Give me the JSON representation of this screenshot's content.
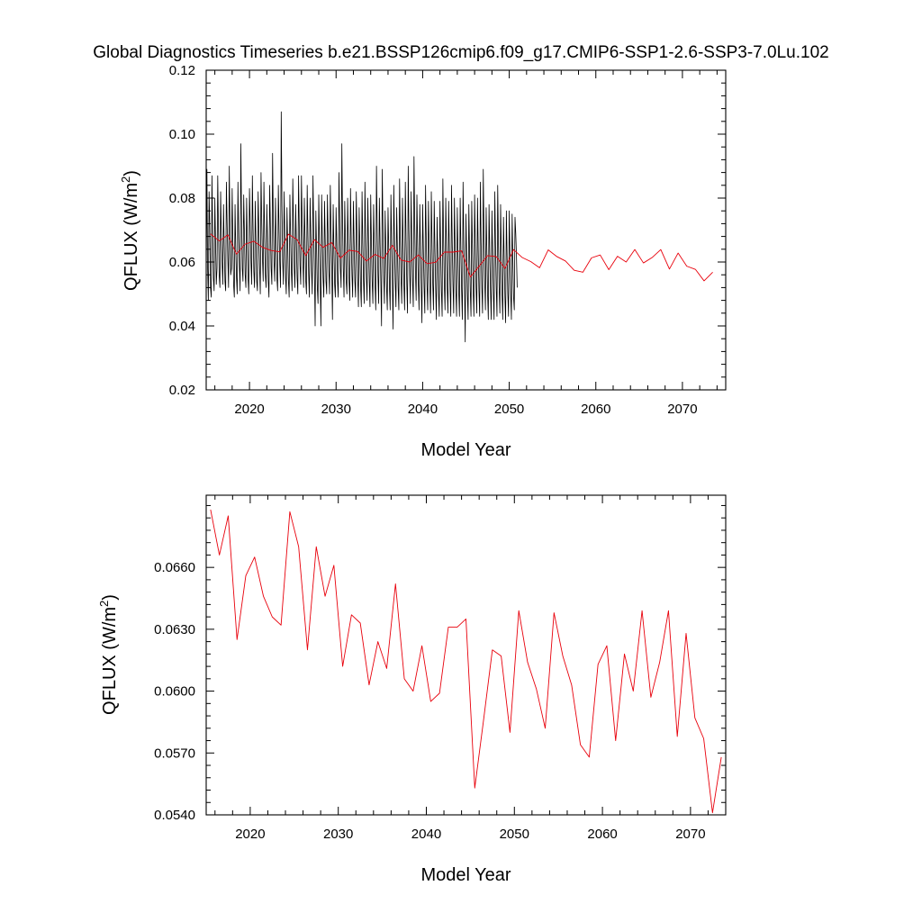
{
  "title": "Global Diagnostics Timeseries b.e21.BSSP126cmip6.f09_g17.CMIP6-SSP1-2.6-SSP3-7.0Lu.102",
  "chart_data": [
    {
      "type": "line",
      "xlabel": "Model Year",
      "ylabel_main": "QFLUX (W/m",
      "ylabel_sup": "2",
      "ylabel_close": ")",
      "xlim": [
        2015,
        2075
      ],
      "ylim": [
        0.02,
        0.12
      ],
      "xticks": [
        2020,
        2030,
        2040,
        2050,
        2060,
        2070
      ],
      "xtick_labels": [
        "2020",
        "2030",
        "2040",
        "2050",
        "2060",
        "2070"
      ],
      "yticks": [
        0.02,
        0.04,
        0.06,
        0.08,
        0.1,
        0.12
      ],
      "ytick_labels": [
        "0.02",
        "0.04",
        "0.06",
        "0.08",
        "0.10",
        "0.12"
      ],
      "series": [
        {
          "color": "#000000",
          "x_start": 2015.0,
          "x_step": 0.0833333,
          "values": [
            0.055,
            0.089,
            0.058,
            0.048,
            0.082,
            0.071,
            0.052,
            0.049,
            0.087,
            0.069,
            0.055,
            0.051,
            0.08,
            0.066,
            0.053,
            0.058,
            0.087,
            0.07,
            0.056,
            0.052,
            0.082,
            0.068,
            0.06,
            0.053,
            0.078,
            0.065,
            0.054,
            0.051,
            0.085,
            0.072,
            0.061,
            0.052,
            0.09,
            0.071,
            0.056,
            0.058,
            0.083,
            0.066,
            0.053,
            0.049,
            0.078,
            0.064,
            0.055,
            0.05,
            0.085,
            0.068,
            0.059,
            0.051,
            0.097,
            0.075,
            0.058,
            0.054,
            0.081,
            0.069,
            0.056,
            0.052,
            0.08,
            0.066,
            0.055,
            0.05,
            0.083,
            0.072,
            0.06,
            0.053,
            0.087,
            0.07,
            0.057,
            0.052,
            0.079,
            0.066,
            0.054,
            0.051,
            0.082,
            0.07,
            0.058,
            0.05,
            0.088,
            0.072,
            0.061,
            0.054,
            0.085,
            0.068,
            0.056,
            0.052,
            0.078,
            0.066,
            0.054,
            0.049,
            0.084,
            0.071,
            0.058,
            0.053,
            0.094,
            0.073,
            0.06,
            0.054,
            0.08,
            0.066,
            0.055,
            0.051,
            0.084,
            0.07,
            0.059,
            0.052,
            0.107,
            0.078,
            0.06,
            0.053,
            0.082,
            0.068,
            0.055,
            0.05,
            0.077,
            0.065,
            0.054,
            0.049,
            0.081,
            0.068,
            0.057,
            0.051,
            0.086,
            0.072,
            0.058,
            0.052,
            0.078,
            0.066,
            0.055,
            0.05,
            0.087,
            0.071,
            0.059,
            0.053,
            0.087,
            0.072,
            0.06,
            0.052,
            0.08,
            0.067,
            0.054,
            0.05,
            0.084,
            0.068,
            0.056,
            0.049,
            0.08,
            0.068,
            0.057,
            0.05,
            0.087,
            0.07,
            0.057,
            0.04,
            0.076,
            0.064,
            0.052,
            0.047,
            0.081,
            0.066,
            0.054,
            0.04,
            0.081,
            0.067,
            0.055,
            0.049,
            0.079,
            0.066,
            0.054,
            0.05,
            0.081,
            0.068,
            0.057,
            0.05,
            0.084,
            0.07,
            0.058,
            0.042,
            0.078,
            0.064,
            0.053,
            0.049,
            0.077,
            0.065,
            0.054,
            0.049,
            0.088,
            0.072,
            0.058,
            0.052,
            0.097,
            0.073,
            0.058,
            0.049,
            0.079,
            0.066,
            0.054,
            0.05,
            0.08,
            0.066,
            0.054,
            0.048,
            0.083,
            0.067,
            0.056,
            0.049,
            0.079,
            0.066,
            0.054,
            0.049,
            0.082,
            0.068,
            0.055,
            0.046,
            0.077,
            0.064,
            0.052,
            0.046,
            0.082,
            0.066,
            0.054,
            0.047,
            0.085,
            0.068,
            0.055,
            0.048,
            0.08,
            0.066,
            0.054,
            0.046,
            0.081,
            0.066,
            0.054,
            0.047,
            0.078,
            0.065,
            0.053,
            0.045,
            0.09,
            0.07,
            0.056,
            0.047,
            0.08,
            0.066,
            0.054,
            0.04,
            0.089,
            0.07,
            0.056,
            0.047,
            0.076,
            0.064,
            0.052,
            0.045,
            0.077,
            0.064,
            0.052,
            0.045,
            0.081,
            0.066,
            0.053,
            0.039,
            0.084,
            0.067,
            0.054,
            0.046,
            0.077,
            0.064,
            0.052,
            0.045,
            0.086,
            0.068,
            0.055,
            0.047,
            0.08,
            0.065,
            0.053,
            0.045,
            0.085,
            0.067,
            0.053,
            0.044,
            0.09,
            0.07,
            0.056,
            0.047,
            0.082,
            0.066,
            0.054,
            0.046,
            0.093,
            0.072,
            0.057,
            0.048,
            0.081,
            0.066,
            0.053,
            0.045,
            0.078,
            0.064,
            0.052,
            0.041,
            0.078,
            0.064,
            0.052,
            0.044,
            0.084,
            0.067,
            0.053,
            0.045,
            0.079,
            0.064,
            0.052,
            0.044,
            0.082,
            0.066,
            0.053,
            0.045,
            0.079,
            0.064,
            0.052,
            0.042,
            0.074,
            0.062,
            0.05,
            0.043,
            0.079,
            0.064,
            0.051,
            0.043,
            0.086,
            0.067,
            0.053,
            0.045,
            0.08,
            0.065,
            0.052,
            0.044,
            0.079,
            0.064,
            0.051,
            0.043,
            0.084,
            0.066,
            0.053,
            0.044,
            0.08,
            0.064,
            0.051,
            0.043,
            0.077,
            0.063,
            0.051,
            0.043,
            0.08,
            0.064,
            0.051,
            0.042,
            0.085,
            0.067,
            0.052,
            0.035,
            0.075,
            0.062,
            0.05,
            0.042,
            0.078,
            0.063,
            0.051,
            0.043,
            0.079,
            0.064,
            0.051,
            0.043,
            0.081,
            0.065,
            0.052,
            0.044,
            0.08,
            0.064,
            0.051,
            0.043,
            0.085,
            0.066,
            0.052,
            0.044,
            0.089,
            0.068,
            0.054,
            0.045,
            0.077,
            0.063,
            0.05,
            0.042,
            0.078,
            0.063,
            0.051,
            0.042,
            0.076,
            0.062,
            0.05,
            0.042,
            0.082,
            0.065,
            0.052,
            0.043,
            0.084,
            0.066,
            0.052,
            0.044,
            0.078,
            0.063,
            0.05,
            0.042,
            0.074,
            0.061,
            0.049,
            0.041,
            0.076,
            0.062,
            0.05,
            0.043,
            0.076,
            0.062,
            0.05,
            0.042,
            0.075,
            0.061,
            0.049,
            0.045,
            0.074,
            0.069,
            0.062,
            0.052
          ]
        },
        {
          "color": "#e8000b",
          "x_start": 2015.5,
          "x_step": 1.0,
          "values": [
            0.0688,
            0.0666,
            0.0685,
            0.0625,
            0.0656,
            0.0665,
            0.0646,
            0.0636,
            0.0632,
            0.0687,
            0.067,
            0.062,
            0.067,
            0.0646,
            0.0661,
            0.0612,
            0.0637,
            0.0633,
            0.0603,
            0.0624,
            0.0611,
            0.0652,
            0.0606,
            0.06,
            0.0622,
            0.0595,
            0.0599,
            0.0631,
            0.0631,
            0.0635,
            0.0553,
            0.0586,
            0.062,
            0.0617,
            0.058,
            0.0639,
            0.0614,
            0.0601,
            0.0582,
            0.0638,
            0.0617,
            0.0603,
            0.0574,
            0.0568,
            0.0613,
            0.0622,
            0.0576,
            0.0618,
            0.06,
            0.0639,
            0.0597,
            0.0614,
            0.0639,
            0.0578,
            0.0628,
            0.0587,
            0.0577,
            0.0541,
            0.0568
          ]
        }
      ]
    },
    {
      "type": "line",
      "xlabel": "Model Year",
      "ylabel_main": "QFLUX (W/m",
      "ylabel_sup": "2",
      "ylabel_close": ")",
      "xlim": [
        2015,
        2074
      ],
      "ylim": [
        0.054,
        0.0695
      ],
      "xticks": [
        2020,
        2030,
        2040,
        2050,
        2060,
        2070
      ],
      "xtick_labels": [
        "2020",
        "2030",
        "2040",
        "2050",
        "2060",
        "2070"
      ],
      "yticks": [
        0.054,
        0.057,
        0.06,
        0.063,
        0.066
      ],
      "ytick_labels": [
        "0.0540",
        "0.0570",
        "0.0600",
        "0.0630",
        "0.0660"
      ],
      "series": [
        {
          "color": "#e8000b",
          "x_start": 2015.5,
          "x_step": 1.0,
          "values": [
            0.0688,
            0.0666,
            0.0685,
            0.0625,
            0.0656,
            0.0665,
            0.0646,
            0.0636,
            0.0632,
            0.0687,
            0.067,
            0.062,
            0.067,
            0.0646,
            0.0661,
            0.0612,
            0.0637,
            0.0633,
            0.0603,
            0.0624,
            0.0611,
            0.0652,
            0.0606,
            0.06,
            0.0622,
            0.0595,
            0.0599,
            0.0631,
            0.0631,
            0.0635,
            0.0553,
            0.0586,
            0.062,
            0.0617,
            0.058,
            0.0639,
            0.0614,
            0.0601,
            0.0582,
            0.0638,
            0.0617,
            0.0603,
            0.0574,
            0.0568,
            0.0613,
            0.0622,
            0.0576,
            0.0618,
            0.06,
            0.0639,
            0.0597,
            0.0614,
            0.0639,
            0.0578,
            0.0628,
            0.0587,
            0.0577,
            0.0541,
            0.0568
          ]
        }
      ]
    }
  ]
}
